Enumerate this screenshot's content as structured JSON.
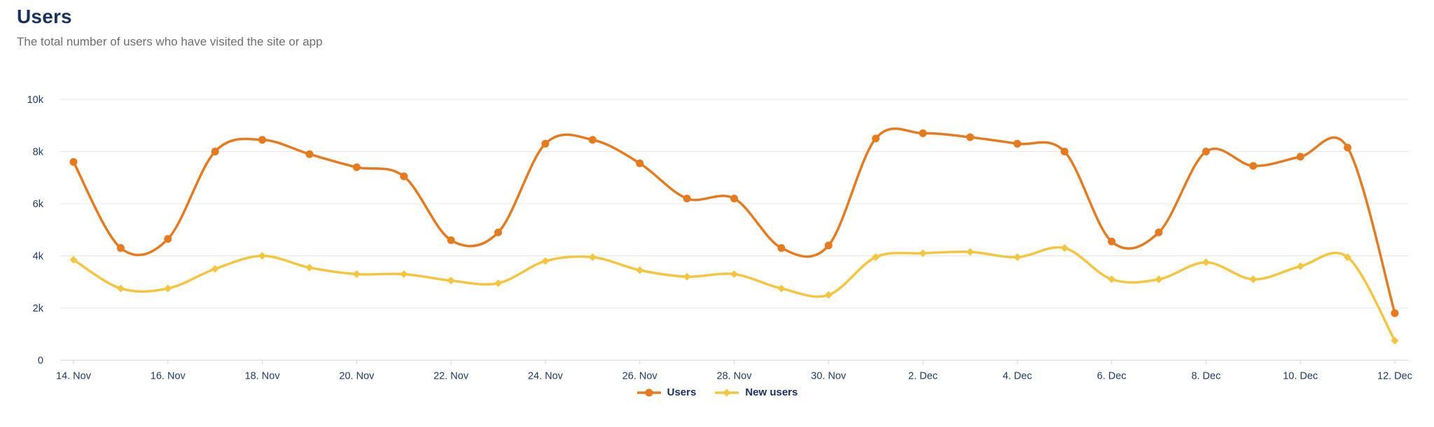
{
  "header": {
    "title": "Users",
    "subtitle": "The total number of users who have visited the site or app"
  },
  "chart_data": {
    "type": "line",
    "title": "Users",
    "x": [
      "14. Nov",
      "15. Nov",
      "16. Nov",
      "17. Nov",
      "18. Nov",
      "19. Nov",
      "20. Nov",
      "21. Nov",
      "22. Nov",
      "23. Nov",
      "24. Nov",
      "25. Nov",
      "26. Nov",
      "27. Nov",
      "28. Nov",
      "29. Nov",
      "30. Nov",
      "1. Dec",
      "2. Dec",
      "3. Dec",
      "4. Dec",
      "5. Dec",
      "6. Dec",
      "7. Dec",
      "8. Dec",
      "9. Dec",
      "10. Dec",
      "11. Dec",
      "12. Dec"
    ],
    "series": [
      {
        "name": "Users",
        "color": "#e87a1e",
        "marker": "circle",
        "values": [
          7600,
          4300,
          4650,
          8000,
          8450,
          7900,
          7400,
          7050,
          4600,
          4900,
          8300,
          8450,
          7550,
          6200,
          6200,
          4300,
          4400,
          8500,
          8700,
          8550,
          8300,
          8000,
          4550,
          4900,
          8000,
          7450,
          7800,
          8150,
          1800
        ]
      },
      {
        "name": "New users",
        "color": "#f5c63d",
        "marker": "diamond",
        "values": [
          3850,
          2750,
          2750,
          3500,
          4000,
          3550,
          3300,
          3300,
          3050,
          2950,
          3800,
          3950,
          3450,
          3200,
          3300,
          2750,
          2500,
          3950,
          4100,
          4150,
          3950,
          4300,
          3100,
          3100,
          3750,
          3100,
          3600,
          3950,
          750
        ]
      }
    ],
    "xlabel": "",
    "ylabel": "",
    "ylim": [
      0,
      10000
    ],
    "yticks": [
      0,
      2000,
      4000,
      6000,
      8000,
      10000
    ],
    "ytick_labels": [
      "0",
      "2k",
      "4k",
      "6k",
      "8k",
      "10k"
    ],
    "xtick_every": 2,
    "grid": true,
    "legend_position": "bottom-center"
  },
  "colors": {
    "grid_line": "#e8e8e8",
    "axis_line": "#d9d9d9",
    "tick_mark": "#d0d5da",
    "axis_text": "#1f3b66",
    "legend_text": "#16305f",
    "title_text": "#17325f",
    "subtitle_text": "#6e6e6e",
    "background": "#ffffff"
  }
}
